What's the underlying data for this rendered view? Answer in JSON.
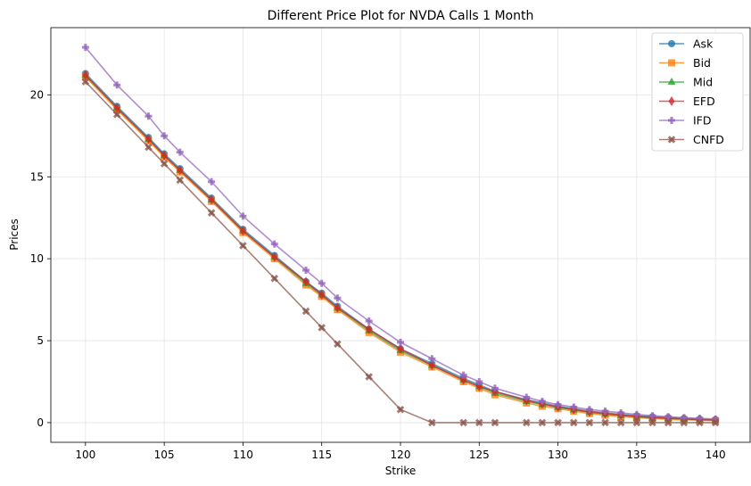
{
  "chart_data": {
    "type": "line",
    "title": "Different Price Plot for NVDA Calls 1 Month",
    "xlabel": "Strike",
    "ylabel": "Prices",
    "xlim": [
      97.8,
      142.2
    ],
    "ylim": [
      -1.2,
      24.1
    ],
    "xticks": [
      100,
      105,
      110,
      115,
      120,
      125,
      130,
      135,
      140
    ],
    "yticks": [
      0,
      5,
      10,
      15,
      20
    ],
    "grid": true,
    "legend_position": "top-right",
    "x": [
      100,
      102,
      104,
      105,
      106,
      108,
      110,
      112,
      114,
      115,
      116,
      118,
      120,
      122,
      124,
      125,
      126,
      128,
      129,
      130,
      131,
      132,
      133,
      134,
      135,
      136,
      137,
      138,
      139,
      140
    ],
    "series": [
      {
        "name": "Ask",
        "color": "#1f77b4",
        "marker": "circle",
        "values": [
          21.3,
          19.3,
          17.4,
          16.4,
          15.5,
          13.7,
          11.8,
          10.2,
          8.6,
          7.9,
          7.1,
          5.7,
          4.5,
          3.6,
          2.7,
          2.3,
          1.9,
          1.4,
          1.2,
          1.0,
          0.85,
          0.7,
          0.6,
          0.5,
          0.42,
          0.36,
          0.31,
          0.26,
          0.22,
          0.18
        ]
      },
      {
        "name": "Bid",
        "color": "#ff7f0e",
        "marker": "square",
        "values": [
          21.1,
          19.1,
          17.2,
          16.2,
          15.3,
          13.5,
          11.6,
          10.0,
          8.4,
          7.7,
          6.9,
          5.5,
          4.3,
          3.4,
          2.5,
          2.1,
          1.7,
          1.2,
          1.0,
          0.85,
          0.7,
          0.55,
          0.45,
          0.37,
          0.3,
          0.25,
          0.2,
          0.17,
          0.14,
          0.12
        ]
      },
      {
        "name": "Mid",
        "color": "#2ca02c",
        "marker": "triangle",
        "values": [
          21.2,
          19.2,
          17.3,
          16.3,
          15.4,
          13.6,
          11.7,
          10.1,
          8.5,
          7.8,
          7.0,
          5.6,
          4.4,
          3.5,
          2.6,
          2.2,
          1.8,
          1.3,
          1.1,
          0.93,
          0.78,
          0.63,
          0.53,
          0.44,
          0.36,
          0.3,
          0.26,
          0.22,
          0.18,
          0.15
        ]
      },
      {
        "name": "EFD",
        "color": "#d62728",
        "marker": "diamond",
        "values": [
          21.2,
          19.2,
          17.3,
          16.3,
          15.4,
          13.6,
          11.7,
          10.1,
          8.6,
          7.8,
          7.0,
          5.7,
          4.5,
          3.5,
          2.6,
          2.2,
          1.9,
          1.35,
          1.15,
          0.95,
          0.8,
          0.65,
          0.55,
          0.45,
          0.38,
          0.32,
          0.27,
          0.23,
          0.19,
          0.16
        ]
      },
      {
        "name": "IFD",
        "color": "#9467bd",
        "marker": "plus",
        "values": [
          22.9,
          20.6,
          18.7,
          17.5,
          16.5,
          14.7,
          12.6,
          10.9,
          9.3,
          8.5,
          7.6,
          6.2,
          4.9,
          3.9,
          2.9,
          2.5,
          2.1,
          1.55,
          1.3,
          1.1,
          0.95,
          0.8,
          0.7,
          0.6,
          0.5,
          0.42,
          0.36,
          0.3,
          0.26,
          0.22
        ]
      },
      {
        "name": "CNFD",
        "color": "#8c564b",
        "marker": "x",
        "values": [
          20.8,
          18.8,
          16.8,
          15.8,
          14.8,
          12.8,
          10.8,
          8.8,
          6.8,
          5.8,
          4.8,
          2.8,
          0.8,
          0.0,
          0.0,
          0.0,
          0.0,
          0.0,
          0.0,
          0.0,
          0.0,
          0.0,
          0.0,
          0.0,
          0.0,
          0.0,
          0.0,
          0.0,
          0.0,
          0.0
        ]
      }
    ]
  }
}
